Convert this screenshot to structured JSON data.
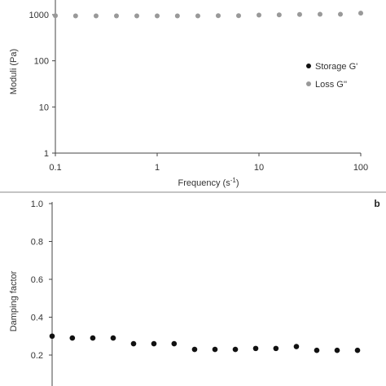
{
  "chart_data": [
    {
      "type": "scatter",
      "panel": "a",
      "panel_label": "",
      "x_scale": "log",
      "y_scale": "log",
      "xlabel_main": "Frequency (s",
      "xlabel_sup": "-1",
      "xlabel_end": ")",
      "ylabel": "Moduli (Pa)",
      "xlim": [
        0.1,
        100
      ],
      "ylim": [
        1,
        1000
      ],
      "x_ticks": [
        0.1,
        1,
        10,
        100
      ],
      "x_tick_labels": [
        "0.1",
        "1",
        "10",
        "100"
      ],
      "y_ticks": [
        1,
        10,
        100,
        1000
      ],
      "y_tick_labels": [
        "1",
        "10",
        "100",
        "1000"
      ],
      "legend_position": "center-right",
      "series": [
        {
          "name": "Storage G'",
          "color": "#111111",
          "points": []
        },
        {
          "name": "Loss G''",
          "color": "#999999",
          "points": [
            {
              "x": 0.1,
              "y": 950
            },
            {
              "x": 0.158,
              "y": 940
            },
            {
              "x": 0.251,
              "y": 940
            },
            {
              "x": 0.398,
              "y": 940
            },
            {
              "x": 0.631,
              "y": 940
            },
            {
              "x": 1.0,
              "y": 940
            },
            {
              "x": 1.58,
              "y": 940
            },
            {
              "x": 2.51,
              "y": 940
            },
            {
              "x": 3.98,
              "y": 950
            },
            {
              "x": 6.31,
              "y": 950
            },
            {
              "x": 10.0,
              "y": 980
            },
            {
              "x": 15.8,
              "y": 990
            },
            {
              "x": 25.1,
              "y": 1010
            },
            {
              "x": 39.8,
              "y": 1020
            },
            {
              "x": 63.1,
              "y": 1020
            },
            {
              "x": 100.0,
              "y": 1080
            }
          ]
        }
      ]
    },
    {
      "type": "scatter",
      "panel": "b",
      "panel_label": "b",
      "x_scale": "log",
      "y_scale": "linear",
      "ylabel": "Damping factor",
      "ylim": [
        0.0,
        1.0
      ],
      "y_ticks": [
        0.2,
        0.4,
        0.6,
        0.8,
        1.0
      ],
      "y_tick_labels": [
        "0.2",
        "0.4",
        "0.6",
        "0.8",
        "1.0"
      ],
      "series": [
        {
          "name": "",
          "color": "#111111",
          "points": [
            {
              "x": 0.1,
              "y": 0.3
            },
            {
              "x": 0.158,
              "y": 0.29
            },
            {
              "x": 0.251,
              "y": 0.29
            },
            {
              "x": 0.398,
              "y": 0.29
            },
            {
              "x": 0.631,
              "y": 0.26
            },
            {
              "x": 1.0,
              "y": 0.26
            },
            {
              "x": 1.58,
              "y": 0.26
            },
            {
              "x": 2.51,
              "y": 0.23
            },
            {
              "x": 3.98,
              "y": 0.23
            },
            {
              "x": 6.31,
              "y": 0.23
            },
            {
              "x": 10.0,
              "y": 0.235
            },
            {
              "x": 15.8,
              "y": 0.235
            },
            {
              "x": 25.1,
              "y": 0.245
            },
            {
              "x": 39.8,
              "y": 0.225
            },
            {
              "x": 63.1,
              "y": 0.225
            },
            {
              "x": 100.0,
              "y": 0.225
            }
          ]
        }
      ]
    }
  ]
}
